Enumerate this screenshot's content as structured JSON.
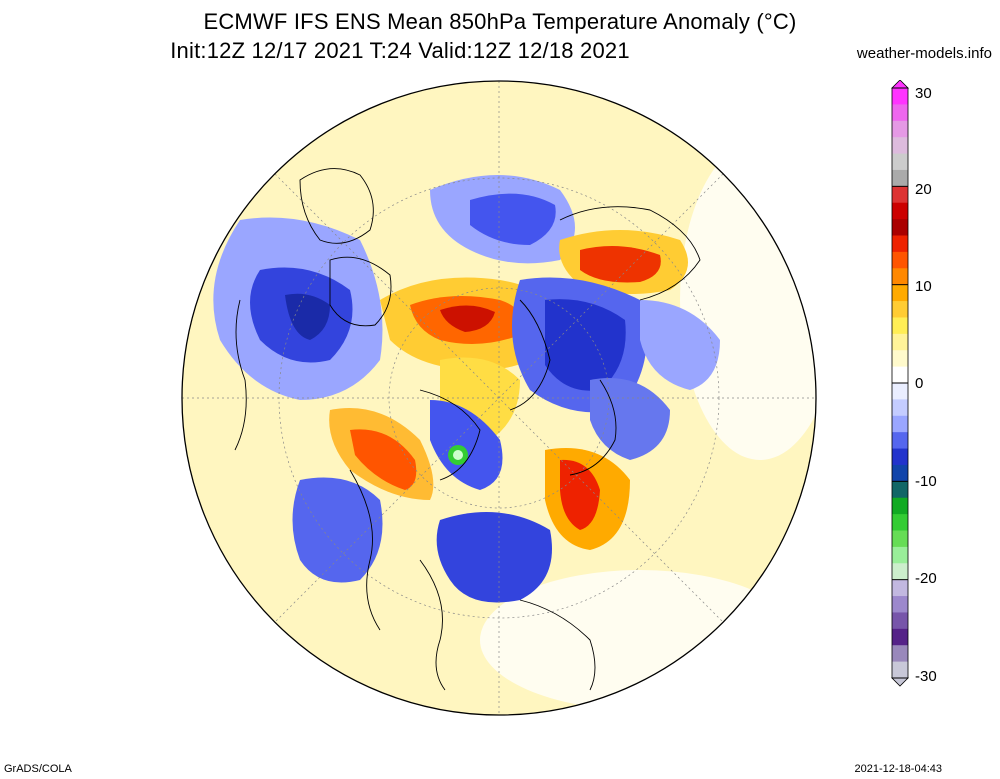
{
  "header": {
    "title_line1": "ECMWF IFS ENS Mean 850hPa Temperature Anomaly (°C)",
    "title_line2": "Init:12Z 12/17 2021  T:24 Valid:12Z 12/18 2021",
    "source": "weather-models.info"
  },
  "colorbar": {
    "ticks": [
      "30",
      "20",
      "10",
      "0",
      "-10",
      "-20",
      "-30"
    ],
    "colors": [
      "#ff33ff",
      "#ee66ee",
      "#e599e5",
      "#ddbbdd",
      "#cccccc",
      "#aaaaaa",
      "#dd3333",
      "#cc0000",
      "#aa0000",
      "#ee2200",
      "#ff5500",
      "#ff8800",
      "#ffaa00",
      "#ffcc33",
      "#ffee55",
      "#fff399",
      "#fffacc",
      "#ffffff",
      "#eaeeff",
      "#c4ccff",
      "#9aa6ff",
      "#5566ee",
      "#2233cc",
      "#1144aa",
      "#116666",
      "#11aa22",
      "#33cc33",
      "#66dd55",
      "#99ee99",
      "#cceecc",
      "#c2b8e0",
      "#9c88cc",
      "#7755aa",
      "#552288",
      "#9988bb",
      "#c8c8d8"
    ]
  },
  "map": {
    "projection": "north-polar-stereographic",
    "field": "850hPa temperature anomaly",
    "units": "°C"
  },
  "footer": {
    "left": "GrADS/COLA",
    "right": "2021-12-18-04:43"
  }
}
